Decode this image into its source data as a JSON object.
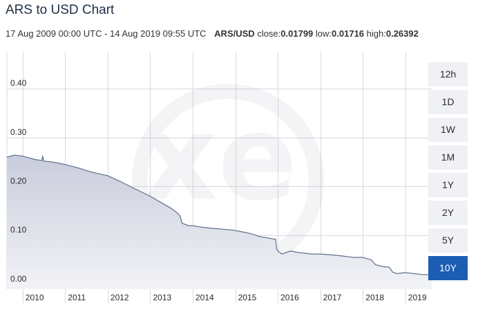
{
  "page": {
    "title": "ARS to USD Chart",
    "date_range": "17 Aug 2009 00:00 UTC - 14 Aug 2019 09:55 UTC",
    "pair": "ARS/USD",
    "close_label": "close:",
    "close_value": "0.01799",
    "low_label": "low:",
    "low_value": "0.01716",
    "high_label": "high:",
    "high_value": "0.26392"
  },
  "range_buttons": [
    {
      "label": "12h",
      "active": false
    },
    {
      "label": "1D",
      "active": false
    },
    {
      "label": "1W",
      "active": false
    },
    {
      "label": "1M",
      "active": false
    },
    {
      "label": "1Y",
      "active": false
    },
    {
      "label": "2Y",
      "active": false
    },
    {
      "label": "5Y",
      "active": false
    },
    {
      "label": "10Y",
      "active": true
    }
  ],
  "colors": {
    "line": "#5f6f8f",
    "area_top": "#c9ccdb",
    "area_bottom": "#f2f3f7",
    "grid": "#d6d9e0",
    "active_button": "#1c5db4",
    "button": "#f0f1f4"
  },
  "watermark": "xe",
  "chart_data": {
    "type": "area",
    "title": "ARS to USD Chart",
    "xlabel": "",
    "ylabel": "",
    "xlim": [
      2009.63,
      2019.62
    ],
    "ylim": [
      -0.01,
      0.475
    ],
    "y_ticks": [
      0.0,
      0.1,
      0.2,
      0.3,
      0.4
    ],
    "y_tick_labels": [
      "0.00",
      "0.10",
      "0.20",
      "0.30",
      "0.40"
    ],
    "x_ticks": [
      2010,
      2011,
      2012,
      2013,
      2014,
      2015,
      2016,
      2017,
      2018,
      2019
    ],
    "x_tick_labels": [
      "2010",
      "2011",
      "2012",
      "2013",
      "2014",
      "2015",
      "2016",
      "2017",
      "2018",
      "2019"
    ],
    "grid": true,
    "legend": "none",
    "series": [
      {
        "x": [
          2009.63,
          2009.8,
          2010.0,
          2010.3,
          2010.45,
          2010.47,
          2010.5,
          2010.7,
          2011.0,
          2011.3,
          2011.6,
          2012.0,
          2012.3,
          2012.6,
          2013.0,
          2013.3,
          2013.5,
          2013.65,
          2013.7,
          2013.75,
          2013.9,
          2014.0,
          2014.2,
          2014.4,
          2014.8,
          2015.0,
          2015.3,
          2015.5,
          2015.55,
          2015.95,
          2015.97,
          2016.0,
          2016.1,
          2016.3,
          2016.5,
          2016.8,
          2017.0,
          2017.3,
          2017.5,
          2017.8,
          2018.0,
          2018.2,
          2018.3,
          2018.5,
          2018.62,
          2018.7,
          2018.8,
          2019.0,
          2019.2,
          2019.4,
          2019.5,
          2019.62
        ],
        "y": [
          0.26,
          0.264,
          0.262,
          0.255,
          0.253,
          0.262,
          0.252,
          0.25,
          0.245,
          0.238,
          0.23,
          0.222,
          0.21,
          0.197,
          0.18,
          0.165,
          0.155,
          0.145,
          0.14,
          0.125,
          0.12,
          0.12,
          0.117,
          0.115,
          0.112,
          0.11,
          0.105,
          0.1,
          0.098,
          0.092,
          0.073,
          0.068,
          0.062,
          0.068,
          0.065,
          0.062,
          0.062,
          0.06,
          0.058,
          0.055,
          0.055,
          0.05,
          0.04,
          0.036,
          0.035,
          0.025,
          0.022,
          0.024,
          0.022,
          0.02,
          0.02,
          0.018
        ]
      }
    ]
  }
}
